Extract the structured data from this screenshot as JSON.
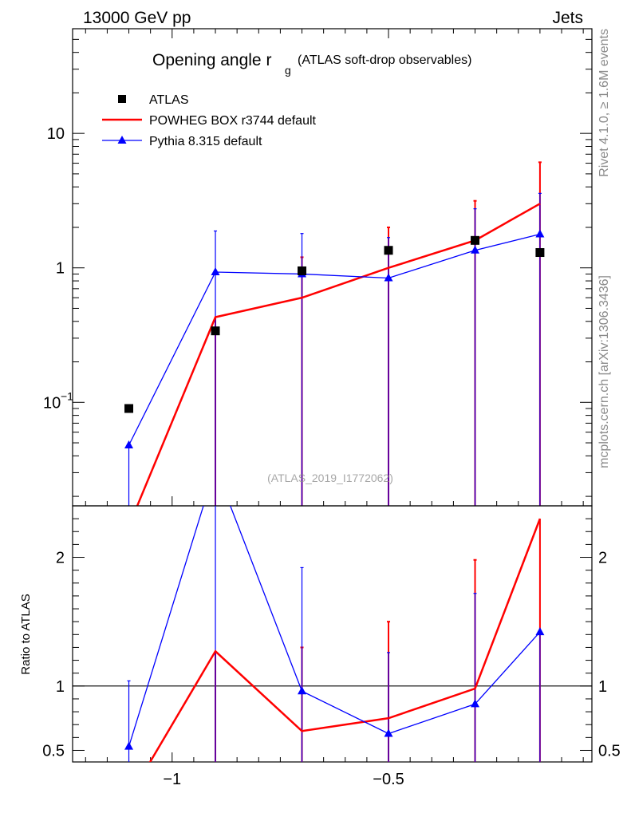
{
  "header": {
    "left": "13000 GeV pp",
    "right": "Jets"
  },
  "side_labels": {
    "rivet": "Rivet 4.1.0, ≥ 1.6M events",
    "mcplots": "mcplots.cern.ch [arXiv:1306.3436]"
  },
  "watermark": "(ATLAS_2019_I1772062)",
  "chart_data": {
    "type": "line",
    "title": "Opening angle r",
    "title_sub": "g",
    "title_suffix": "(ATLAS soft-drop observables)",
    "xlabel": "",
    "ylabel": "",
    "yscale": "log",
    "xlim": [
      -1.23,
      -0.03
    ],
    "ylim": [
      0.017,
      60
    ],
    "x_ticks": [
      {
        "v": -1,
        "label": "−1"
      },
      {
        "v": -0.5,
        "label": "−0.5"
      }
    ],
    "y_ticks": [
      {
        "v": 0.1,
        "label": "10",
        "exp": "−1"
      },
      {
        "v": 1,
        "label": "1",
        "exp": ""
      },
      {
        "v": 10,
        "label": "10",
        "exp": ""
      }
    ],
    "x": [
      -1.1,
      -0.9,
      -0.7,
      -0.5,
      -0.3,
      -0.15
    ],
    "series": [
      {
        "name": "ATLAS",
        "style": "markers",
        "color": "#000000",
        "values": [
          0.09,
          0.34,
          0.95,
          1.35,
          1.6,
          1.3
        ],
        "err_up": [
          0,
          0,
          0,
          0,
          0,
          0
        ],
        "err_down": [
          0,
          0,
          0,
          0,
          0,
          0
        ]
      },
      {
        "name": "POWHEG BOX r3744 default",
        "style": "line",
        "color": "#ff0000",
        "values": [
          0.012,
          0.43,
          0.6,
          1.0,
          1.6,
          3.0
        ],
        "err_up": [
          0,
          0,
          0.6,
          1.0,
          1.55,
          3.1
        ],
        "err_down": [
          0,
          0.43,
          0.6,
          1.0,
          1.6,
          3.0
        ]
      },
      {
        "name": "Pythia 8.315 default",
        "style": "line-triangle",
        "color": "#0000ff",
        "values": [
          0.048,
          0.93,
          0.9,
          0.84,
          1.35,
          1.78
        ],
        "err_up": [
          0,
          0.95,
          0.9,
          0.84,
          1.4,
          1.8
        ],
        "err_down": [
          0.048,
          0.93,
          0.9,
          0.84,
          1.35,
          1.78
        ]
      }
    ],
    "ratio": {
      "ylabel": "Ratio to ATLAS",
      "ylim": [
        0.41,
        2.4
      ],
      "y_ticks": [
        {
          "v": 0.5,
          "label": "0.5"
        },
        {
          "v": 1,
          "label": "1"
        },
        {
          "v": 2,
          "label": "2"
        }
      ],
      "reference": 1,
      "series": [
        {
          "name": "POWHEG BOX r3744 default",
          "color": "#ff0000",
          "values": [
            0.13,
            1.27,
            0.65,
            0.75,
            0.98,
            2.3
          ],
          "err_up": [
            0,
            0,
            0.65,
            0.75,
            1.0,
            0
          ],
          "err_down": [
            0,
            1.27,
            0.65,
            0.75,
            0.98,
            2.3
          ]
        },
        {
          "name": "Pythia 8.315 default",
          "color": "#0000ff",
          "values": [
            0.53,
            2.7,
            0.96,
            0.63,
            0.86,
            1.42
          ],
          "err_up": [
            0.51,
            0,
            0.96,
            0.63,
            0.86,
            0
          ],
          "err_down": [
            0.53,
            2.7,
            0.96,
            0.63,
            0.86,
            1.42
          ]
        }
      ]
    }
  }
}
